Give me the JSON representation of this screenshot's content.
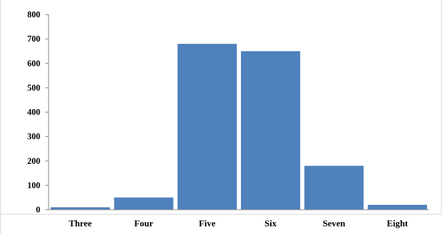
{
  "chart_data": {
    "type": "bar",
    "categories": [
      "Three",
      "Four",
      "Five",
      "Six",
      "Seven",
      "Eight"
    ],
    "values": [
      10,
      50,
      680,
      650,
      180,
      20
    ],
    "ylim": [
      0,
      800
    ],
    "yticks": [
      0,
      100,
      200,
      300,
      400,
      500,
      600,
      700,
      800
    ],
    "title": "",
    "xlabel": "",
    "ylabel": "",
    "grid": false,
    "legend": "none",
    "bar_color": "#4f81bd"
  }
}
